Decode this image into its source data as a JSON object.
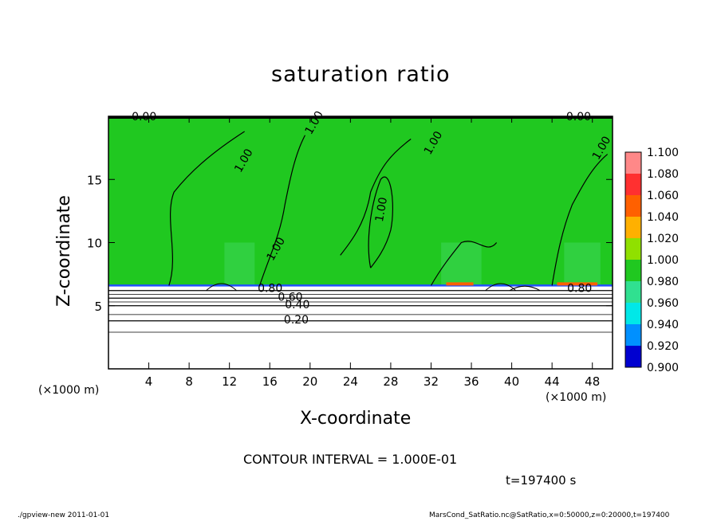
{
  "chart_data": {
    "type": "heatmap",
    "title": "saturation ratio",
    "xlabel": "X-coordinate",
    "ylabel": "Z-coordinate",
    "x_unit_left": "(×1000 m)",
    "x_unit_right": "(×1000 m)",
    "xlim": [
      0,
      50
    ],
    "ylim": [
      0,
      20
    ],
    "xticks": [
      4,
      8,
      12,
      16,
      20,
      24,
      28,
      32,
      36,
      40,
      44,
      48
    ],
    "yticks": [
      5,
      10,
      15
    ],
    "colorbar": {
      "levels": [
        "1.100",
        "1.080",
        "1.060",
        "1.040",
        "1.020",
        "1.000",
        "0.980",
        "0.960",
        "0.940",
        "0.920",
        "0.900"
      ],
      "colors": [
        "#ff8888",
        "#ff3030",
        "#ff6000",
        "#ffb000",
        "#90e000",
        "#20c820",
        "#30e090",
        "#00e8e8",
        "#0090ff",
        "#0000d0",
        "#6000a0"
      ]
    },
    "field": {
      "saturated_region_z_min": 6.6,
      "saturated_region_value": 1.0,
      "subsaturated_contours": [
        {
          "label": "0.20",
          "z": 3.8
        },
        {
          "label": "0.40",
          "z": 5.0
        },
        {
          "label": "0.60",
          "z": 5.6
        },
        {
          "label": "0.80",
          "z": 6.2
        }
      ]
    },
    "contour_labels": [
      "1.00",
      "1.00",
      "1.00",
      "1.00",
      "1.00",
      "1.00",
      "0.80",
      "0.80",
      "0.60",
      "0.40",
      "0.20",
      "0.00",
      "0.00"
    ],
    "contour_interval_text": "CONTOUR INTERVAL = 1.000E-01",
    "time_text": "t=197400 s",
    "footer_left": "./gpview-new  2011-01-01",
    "footer_right": "MarsCond_SatRatio.nc@SatRatio,x=0:50000,z=0:20000,t=197400"
  }
}
